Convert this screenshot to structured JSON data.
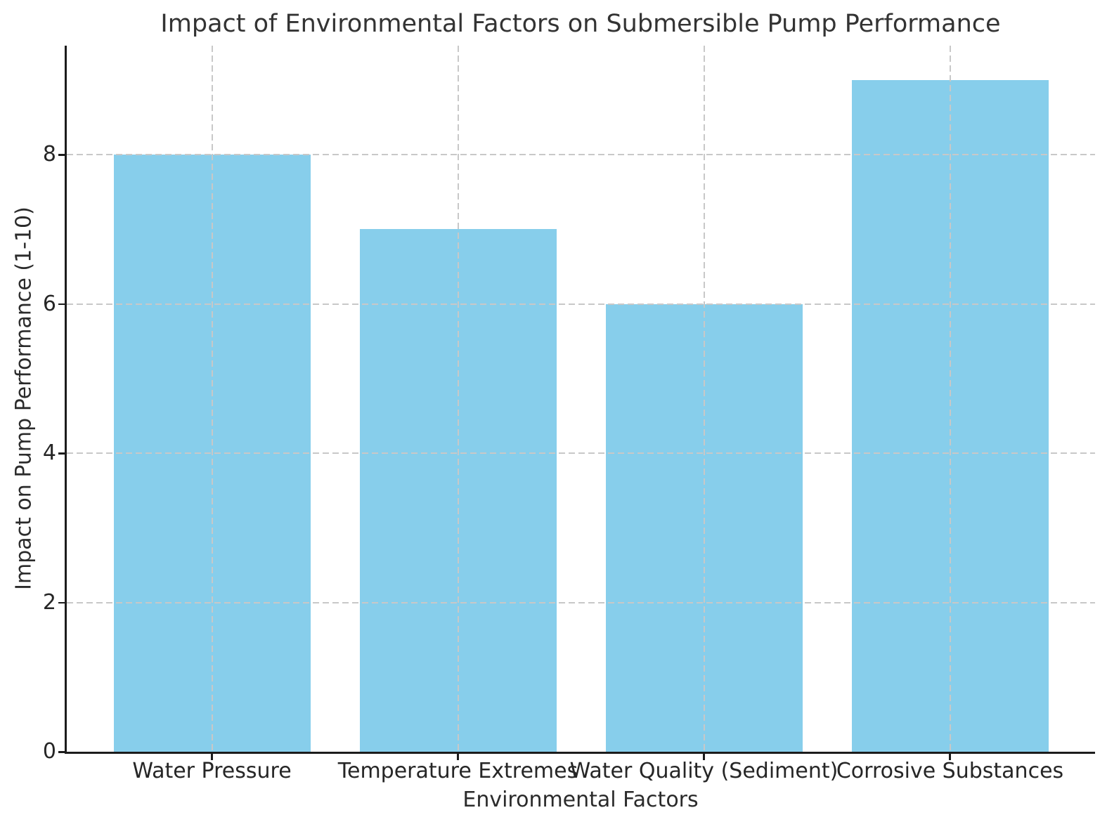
{
  "title": "Impact of Environmental Factors on Submersible Pump Performance",
  "chart_data": {
    "type": "bar",
    "title": "Impact of Environmental Factors on Submersible Pump Performance",
    "categories": [
      "Water Pressure",
      "Temperature Extremes",
      "Water Quality (Sediment)",
      "Corrosive Substances"
    ],
    "values": [
      8,
      7,
      6,
      9
    ],
    "xlabel": "Environmental Factors",
    "ylabel": "Impact on Pump Performance (1-10)",
    "ylim": [
      0,
      9.46
    ],
    "yticks": [
      0,
      2,
      4,
      6,
      8
    ],
    "bar_color": "#87ceeb",
    "grid": "on",
    "grid_style": "dashed",
    "grid_color": "#c8c8c8",
    "grid_above_bars": true,
    "legend_position": "none",
    "axis_color": "#1c1c1c",
    "text_color": "#2b2b2b"
  }
}
